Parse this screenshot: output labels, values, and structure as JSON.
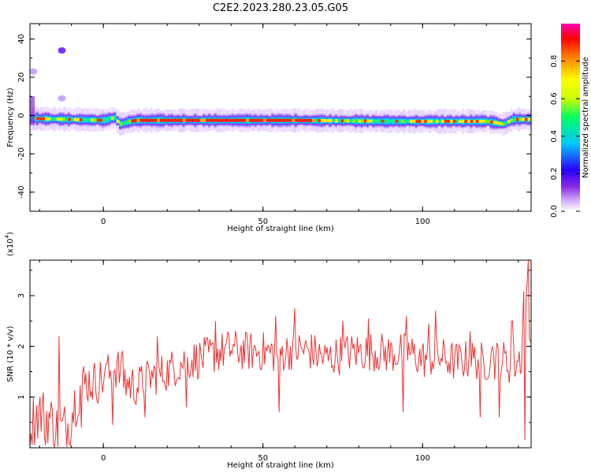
{
  "figure": {
    "title": "C2E2.2023.280.23.05.G05"
  },
  "chart_data": [
    {
      "type": "heatmap",
      "xlabel": "Height of straight line (km)",
      "ylabel": "Frequency (Hz)",
      "xlim": [
        -23,
        134
      ],
      "ylim": [
        -50,
        48
      ],
      "xticks": [
        0,
        50,
        100
      ],
      "yticks": [
        -40,
        -20,
        0,
        20,
        40
      ],
      "colorbar": {
        "label": "Normalized spectral amplitude",
        "range": [
          0,
          1
        ],
        "ticks": [
          0.0,
          0.2,
          0.4,
          0.6,
          0.8
        ],
        "colormap": [
          "#ffffff",
          "#cfa8ff",
          "#8a2be2",
          "#2a00ff",
          "#00c8ff",
          "#00ff60",
          "#c8ff00",
          "#ffff00",
          "#ff8000",
          "#ff0000",
          "#ff00b4"
        ]
      },
      "band": {
        "x": [
          -23,
          0,
          3,
          5,
          8,
          10,
          30,
          60,
          90,
          120,
          125,
          128,
          134
        ],
        "center_hz": [
          -1.5,
          -2.5,
          -1.0,
          -4.5,
          -3.0,
          -2.5,
          -2.5,
          -2.5,
          -3.0,
          -3.0,
          -4.5,
          -2.0,
          -2.0
        ],
        "width_hz": 4
      },
      "spots": [
        {
          "x": -13,
          "y": 34,
          "amplitude": 0.3
        },
        {
          "x": -22,
          "y": 23,
          "amplitude": 0.15
        },
        {
          "x": -13,
          "y": 9,
          "amplitude": 0.2
        }
      ]
    },
    {
      "type": "line",
      "xlabel": "Height of straight line (km)",
      "ylabel": "SNR (10 * v/v)",
      "y_multiplier": "(x10",
      "y_multiplier_exp": "4",
      "y_multiplier_close": ")",
      "xlim": [
        -23,
        134
      ],
      "ylim": [
        0,
        3.7
      ],
      "xticks": [
        0,
        50,
        100
      ],
      "yticks": [
        1,
        2,
        3
      ],
      "series": [
        {
          "color": "#ee3333",
          "x": [
            -23,
            -20,
            -17,
            -14,
            -11,
            -8,
            -5,
            -2,
            1,
            4,
            7,
            10,
            15,
            20,
            25,
            30,
            35,
            40,
            45,
            50,
            55,
            60,
            65,
            70,
            75,
            80,
            85,
            90,
            95,
            100,
            105,
            110,
            115,
            120,
            125,
            128,
            131,
            132,
            134
          ],
          "y": [
            0.5,
            0.7,
            0.6,
            0.3,
            0.45,
            1.1,
            1.3,
            1.3,
            1.4,
            1.6,
            1.3,
            1.2,
            1.4,
            1.5,
            1.7,
            1.75,
            1.85,
            1.95,
            1.9,
            1.9,
            1.85,
            1.95,
            1.9,
            1.75,
            1.85,
            1.9,
            1.9,
            1.85,
            1.9,
            1.75,
            1.8,
            1.7,
            1.75,
            1.7,
            1.75,
            1.6,
            1.8,
            3.6,
            1.8
          ],
          "spikes": [
            [
              -14,
              2.2
            ],
            [
              1,
              1.65
            ],
            [
              6,
              1.9
            ],
            [
              17,
              2.2
            ],
            [
              35,
              2.5
            ],
            [
              54,
              2.6
            ],
            [
              60,
              2.75
            ],
            [
              75,
              2.5
            ],
            [
              83,
              2.55
            ],
            [
              95,
              2.6
            ],
            [
              102,
              2.45
            ],
            [
              104,
              2.7
            ],
            [
              115,
              2.3
            ],
            [
              122,
              2.0
            ],
            [
              128,
              2.5
            ],
            [
              133,
              3.7
            ]
          ],
          "dips": [
            [
              -18,
              0.05
            ],
            [
              -10,
              0.25
            ],
            [
              -7,
              0.4
            ],
            [
              3,
              0.45
            ],
            [
              13,
              0.6
            ],
            [
              26,
              0.8
            ],
            [
              55,
              0.7
            ],
            [
              94,
              0.7
            ],
            [
              118,
              0.6
            ],
            [
              124,
              0.6
            ],
            [
              132,
              0.15
            ]
          ]
        }
      ]
    }
  ]
}
